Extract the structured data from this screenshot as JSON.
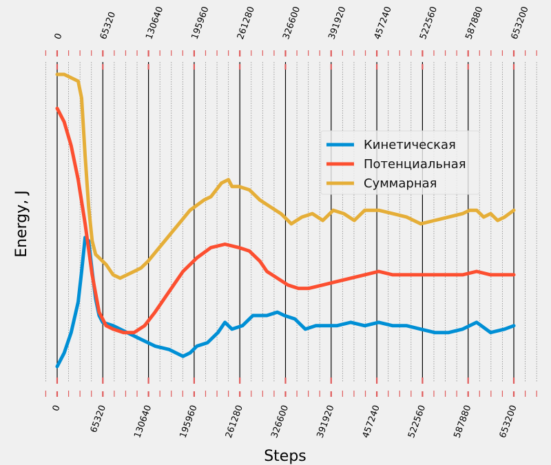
{
  "chart_data": {
    "type": "line",
    "xlabel": "Steps",
    "ylabel": "Energy, J",
    "xlim": [
      -16330,
      685860
    ],
    "major_ticks": [
      0,
      65320,
      130640,
      195960,
      261280,
      326600,
      391920,
      457240,
      522560,
      587880,
      653200
    ],
    "minor_tick_step": 16330,
    "grid": true,
    "legend_position": "upper-right",
    "y_tick_labels_visible": false,
    "series": [
      {
        "name": "Кинетическая",
        "color": "#008fd5",
        "x": [
          0,
          10000,
          20000,
          30000,
          35000,
          40000,
          45000,
          50000,
          55000,
          60000,
          65000,
          80000,
          100000,
          120000,
          140000,
          160000,
          180000,
          190000,
          200000,
          215000,
          230000,
          240000,
          250000,
          265000,
          280000,
          300000,
          315000,
          325000,
          340000,
          355000,
          370000,
          380000,
          400000,
          420000,
          440000,
          460000,
          480000,
          500000,
          520000,
          540000,
          560000,
          580000,
          600000,
          620000,
          640000,
          653200
        ],
        "y": [
          -0.92,
          -0.88,
          -0.82,
          -0.73,
          -0.64,
          -0.54,
          -0.55,
          -0.64,
          -0.72,
          -0.77,
          -0.79,
          -0.8,
          -0.82,
          -0.84,
          -0.86,
          -0.87,
          -0.89,
          -0.88,
          -0.86,
          -0.85,
          -0.82,
          -0.79,
          -0.81,
          -0.8,
          -0.77,
          -0.77,
          -0.76,
          -0.77,
          -0.78,
          -0.81,
          -0.8,
          -0.8,
          -0.8,
          -0.79,
          -0.8,
          -0.79,
          -0.8,
          -0.8,
          -0.81,
          -0.82,
          -0.82,
          -0.81,
          -0.79,
          -0.82,
          -0.81,
          -0.8
        ]
      },
      {
        "name": "Потенциальная",
        "color": "#fc4f30",
        "x": [
          0,
          10000,
          20000,
          30000,
          40000,
          50000,
          60000,
          70000,
          80000,
          95000,
          110000,
          125000,
          140000,
          160000,
          180000,
          200000,
          220000,
          240000,
          260000,
          275000,
          290000,
          300000,
          315000,
          330000,
          345000,
          360000,
          380000,
          400000,
          420000,
          440000,
          460000,
          480000,
          500000,
          520000,
          540000,
          560000,
          580000,
          600000,
          620000,
          640000,
          653200
        ],
        "y": [
          -0.16,
          -0.2,
          -0.27,
          -0.37,
          -0.5,
          -0.65,
          -0.76,
          -0.8,
          -0.81,
          -0.82,
          -0.82,
          -0.8,
          -0.76,
          -0.7,
          -0.64,
          -0.6,
          -0.57,
          -0.56,
          -0.57,
          -0.58,
          -0.61,
          -0.64,
          -0.66,
          -0.68,
          -0.69,
          -0.69,
          -0.68,
          -0.67,
          -0.66,
          -0.65,
          -0.64,
          -0.65,
          -0.65,
          -0.65,
          -0.65,
          -0.65,
          -0.65,
          -0.64,
          -0.65,
          -0.65,
          -0.65
        ]
      },
      {
        "name": "Суммарная",
        "color": "#e5ae38",
        "x": [
          0,
          10000,
          20000,
          30000,
          35000,
          40000,
          45000,
          50000,
          55000,
          60000,
          70000,
          80000,
          90000,
          100000,
          110000,
          120000,
          130000,
          150000,
          170000,
          190000,
          210000,
          220000,
          235000,
          245000,
          250000,
          260000,
          275000,
          290000,
          305000,
          320000,
          335000,
          350000,
          365000,
          380000,
          395000,
          410000,
          425000,
          440000,
          460000,
          480000,
          500000,
          520000,
          540000,
          560000,
          580000,
          590000,
          600000,
          610000,
          620000,
          630000,
          640000,
          653200
        ],
        "y": [
          -0.06,
          -0.06,
          -0.07,
          -0.08,
          -0.13,
          -0.3,
          -0.45,
          -0.55,
          -0.59,
          -0.6,
          -0.62,
          -0.65,
          -0.66,
          -0.65,
          -0.64,
          -0.63,
          -0.61,
          -0.56,
          -0.51,
          -0.46,
          -0.43,
          -0.42,
          -0.38,
          -0.37,
          -0.39,
          -0.39,
          -0.4,
          -0.43,
          -0.45,
          -0.47,
          -0.5,
          -0.48,
          -0.47,
          -0.49,
          -0.46,
          -0.47,
          -0.49,
          -0.46,
          -0.46,
          -0.47,
          -0.48,
          -0.5,
          -0.49,
          -0.48,
          -0.47,
          -0.46,
          -0.46,
          -0.48,
          -0.47,
          -0.49,
          -0.48,
          -0.46
        ]
      }
    ]
  }
}
